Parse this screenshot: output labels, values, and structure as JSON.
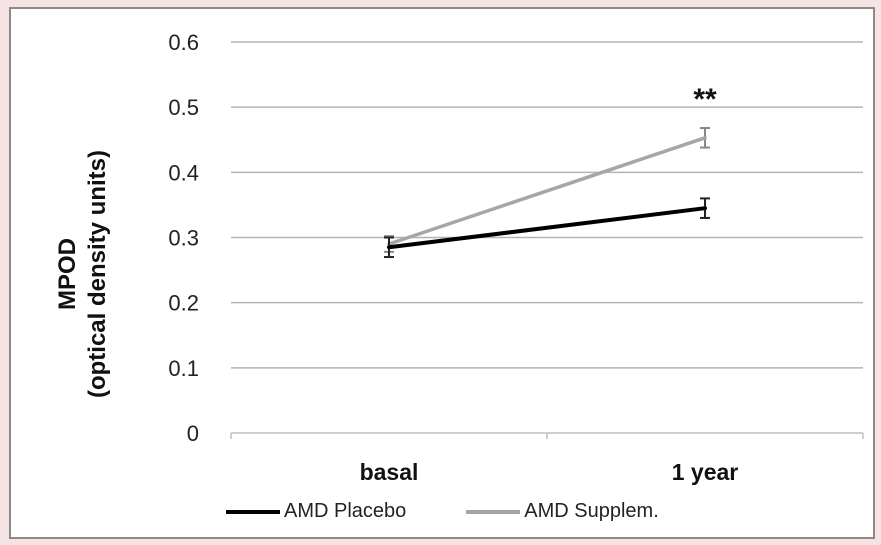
{
  "chart_data": {
    "type": "line",
    "categories": [
      "basal",
      "1 year"
    ],
    "series": [
      {
        "name": "AMD Placebo",
        "values": [
          0.285,
          0.345
        ],
        "errors": [
          0.015,
          0.015
        ],
        "color": "#000000"
      },
      {
        "name": "AMD Supplem.",
        "values": [
          0.29,
          0.453
        ],
        "errors": [
          0.012,
          0.015
        ],
        "color": "#a6a6a6"
      }
    ],
    "title": "",
    "xlabel": "",
    "ylabel": "MPOD\n(optical density units)",
    "ylabel_lines": [
      "MPOD",
      "(optical density units)"
    ],
    "ylim": [
      0,
      0.6
    ],
    "yticks": [
      "0",
      "0.1",
      "0.2",
      "0.3",
      "0.4",
      "0.5",
      "0.6"
    ],
    "grid": true,
    "legend_position": "bottom",
    "annotation": {
      "text": "**",
      "category": "1 year"
    }
  }
}
